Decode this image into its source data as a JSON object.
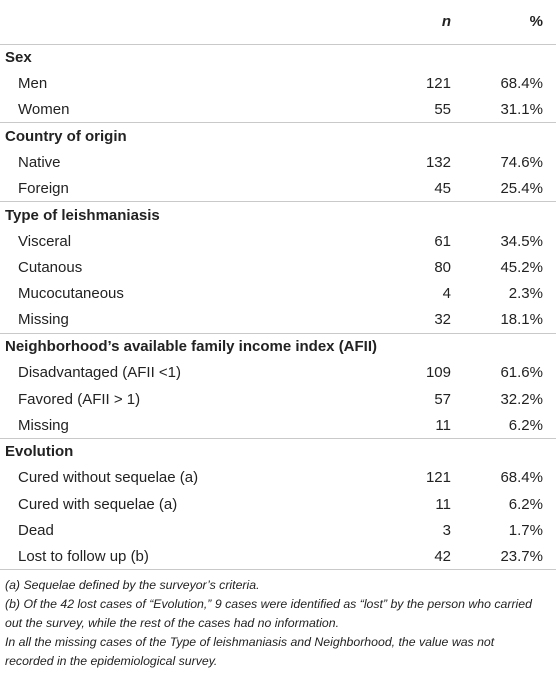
{
  "header": {
    "col_label": "",
    "col_n": "n",
    "col_pct": "%"
  },
  "groups": [
    {
      "title": "Sex",
      "rows": [
        {
          "label": "Men",
          "n": "121",
          "pct": "68.4%"
        },
        {
          "label": "Women",
          "n": "55",
          "pct": "31.1%"
        }
      ]
    },
    {
      "title": "Country of origin",
      "rows": [
        {
          "label": "Native",
          "n": "132",
          "pct": "74.6%"
        },
        {
          "label": "Foreign",
          "n": "45",
          "pct": "25.4%"
        }
      ]
    },
    {
      "title": "Type of leishmaniasis",
      "rows": [
        {
          "label": "Visceral",
          "n": "61",
          "pct": "34.5%"
        },
        {
          "label": "Cutanous",
          "n": "80",
          "pct": "45.2%"
        },
        {
          "label": "Mucocutaneous",
          "n": "4",
          "pct": "2.3%"
        },
        {
          "label": "Missing",
          "n": "32",
          "pct": "18.1%"
        }
      ]
    },
    {
      "title": "Neighborhood’s available family income index (AFII)",
      "rows": [
        {
          "label": "Disadvantaged (AFII <1)",
          "n": "109",
          "pct": "61.6%"
        },
        {
          "label": "Favored (AFII > 1)",
          "n": "57",
          "pct": "32.2%"
        },
        {
          "label": "Missing",
          "n": "11",
          "pct": "6.2%"
        }
      ]
    },
    {
      "title": "Evolution",
      "rows": [
        {
          "label": "Cured without sequelae (a)",
          "n": "121",
          "pct": "68.4%"
        },
        {
          "label": "Cured with sequelae (a)",
          "n": "11",
          "pct": "6.2%"
        },
        {
          "label": "Dead",
          "n": "3",
          "pct": "1.7%"
        },
        {
          "label": "Lost to follow up (b)",
          "n": "42",
          "pct": "23.7%"
        }
      ]
    }
  ],
  "footnotes": [
    "(a) Sequelae defined by the surveyor’s criteria.",
    "(b) Of the 42 lost cases of “Evolution,” 9 cases were identified as “lost” by the person who carried out the survey, while the rest of the cases had no information.",
    "In all the missing cases of the Type of leishmaniasis and Neighborhood, the value was not recorded in the epidemiological survey."
  ]
}
